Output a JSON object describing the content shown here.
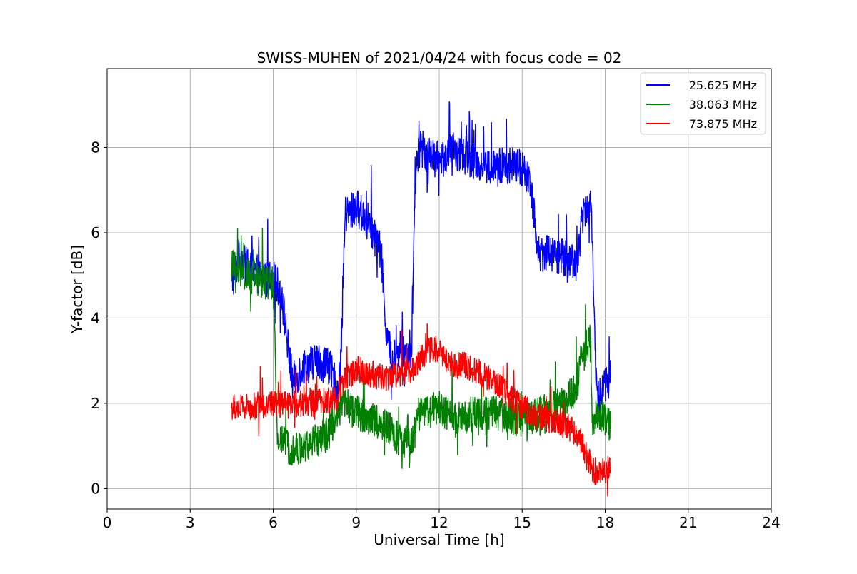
{
  "chart_data": {
    "type": "line",
    "title": "SWISS-MUHEN of 2021/04/24 with focus code = 02",
    "xlabel": "Universal Time [h]",
    "ylabel": "Y-factor [dB]",
    "xlim": [
      0,
      24
    ],
    "ylim": [
      -0.48,
      9.85
    ],
    "xticks": [
      0,
      3,
      6,
      9,
      12,
      15,
      18,
      21,
      24
    ],
    "yticks": [
      0,
      2,
      4,
      6,
      8
    ],
    "grid": true,
    "legend_position": "upper right",
    "series": [
      {
        "name": "25.625 MHz",
        "color": "#0000ff",
        "x": [
          4.5,
          4.8,
          5.0,
          5.5,
          6.0,
          6.3,
          6.5,
          6.7,
          7.0,
          7.5,
          8.0,
          8.4,
          8.6,
          9.0,
          9.5,
          9.9,
          10.1,
          10.3,
          10.6,
          11.0,
          11.15,
          11.3,
          11.6,
          12.0,
          12.5,
          13.0,
          13.5,
          14.0,
          14.5,
          15.0,
          15.3,
          15.6,
          16.0,
          16.5,
          17.0,
          17.2,
          17.5,
          17.7,
          17.9,
          18.2
        ],
        "y": [
          4.8,
          5.5,
          5.2,
          5.0,
          4.9,
          4.6,
          3.5,
          2.5,
          2.8,
          3.0,
          2.9,
          2.2,
          6.4,
          6.6,
          6.2,
          5.5,
          3.6,
          3.0,
          3.3,
          3.2,
          7.5,
          8.0,
          7.8,
          7.7,
          7.9,
          7.8,
          7.6,
          7.5,
          7.6,
          7.5,
          7.2,
          5.5,
          5.6,
          5.4,
          5.3,
          6.5,
          6.7,
          2.0,
          2.4,
          2.6
        ]
      },
      {
        "name": "38.063 MHz",
        "color": "#008000",
        "x": [
          4.5,
          5.0,
          5.5,
          6.0,
          6.15,
          6.5,
          7.0,
          7.5,
          8.0,
          8.5,
          9.0,
          9.5,
          10.0,
          10.5,
          11.0,
          11.2,
          11.5,
          12.0,
          12.5,
          13.0,
          13.5,
          14.0,
          14.5,
          15.0,
          15.5,
          16.0,
          16.5,
          16.9,
          17.1,
          17.3,
          17.45,
          17.55,
          17.7,
          18.0,
          18.2
        ],
        "y": [
          5.2,
          5.0,
          4.9,
          4.8,
          1.2,
          1.0,
          0.9,
          1.1,
          1.3,
          2.0,
          1.8,
          1.6,
          1.5,
          1.2,
          1.0,
          1.6,
          1.8,
          1.9,
          1.6,
          1.7,
          1.8,
          1.8,
          1.7,
          1.6,
          1.7,
          1.9,
          2.0,
          2.3,
          2.9,
          3.3,
          3.5,
          1.5,
          1.8,
          1.6,
          1.4
        ]
      },
      {
        "name": "73.875 MHz",
        "color": "#ff0000",
        "x": [
          4.5,
          5.0,
          5.5,
          6.0,
          6.5,
          7.0,
          7.5,
          8.0,
          8.3,
          8.6,
          9.0,
          9.5,
          10.0,
          10.5,
          11.0,
          11.5,
          12.0,
          12.3,
          12.6,
          13.0,
          13.5,
          14.0,
          14.5,
          15.0,
          15.5,
          16.0,
          16.5,
          17.0,
          17.3,
          17.6,
          18.0,
          18.2
        ],
        "y": [
          1.9,
          1.9,
          1.95,
          2.0,
          1.95,
          2.0,
          2.0,
          2.05,
          2.2,
          2.6,
          2.8,
          2.7,
          2.6,
          2.7,
          2.8,
          3.2,
          3.3,
          3.0,
          2.9,
          2.9,
          2.7,
          2.5,
          2.2,
          1.9,
          1.7,
          1.6,
          1.5,
          1.3,
          0.8,
          0.4,
          0.4,
          0.5
        ]
      }
    ]
  }
}
